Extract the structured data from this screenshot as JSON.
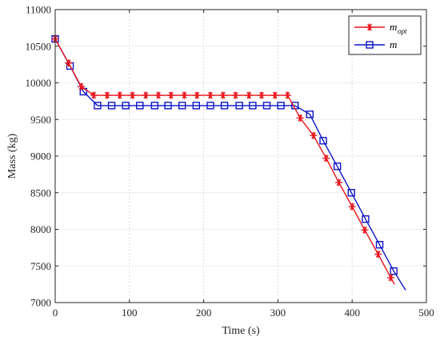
{
  "chart_data": {
    "type": "line",
    "xlabel": "Time (s)",
    "ylabel": "Mass (kg)",
    "xlim": [
      0,
      500
    ],
    "ylim": [
      7000,
      11000
    ],
    "xticks": [
      "0",
      "100",
      "200",
      "300",
      "400",
      "500"
    ],
    "yticks": [
      "7000",
      "7500",
      "8000",
      "8500",
      "9000",
      "9500",
      "10000",
      "10500",
      "11000"
    ],
    "grid": true,
    "legend_position": "top-right",
    "colors": {
      "m_opt": "#e8141b",
      "m": "#0d14c8"
    },
    "series": [
      {
        "name": "m_opt",
        "label_main": "m",
        "label_sub": "opt",
        "marker": "asterisk",
        "x": [
          0,
          18,
          35,
          52,
          70,
          87,
          104,
          122,
          139,
          156,
          174,
          191,
          209,
          226,
          243,
          261,
          278,
          296,
          313,
          330,
          348,
          365,
          382,
          400,
          417,
          435,
          452
        ],
        "y": [
          10600,
          10270,
          9950,
          9830,
          9830,
          9830,
          9830,
          9830,
          9830,
          9830,
          9830,
          9830,
          9830,
          9830,
          9830,
          9830,
          9830,
          9830,
          9830,
          9520,
          9280,
          8970,
          8640,
          8310,
          7990,
          7660,
          7340
        ]
      },
      {
        "name": "m",
        "label_main": "m",
        "label_sub": "",
        "marker": "square",
        "x": [
          0,
          20,
          38,
          57,
          76,
          95,
          114,
          134,
          152,
          171,
          190,
          209,
          228,
          248,
          266,
          285,
          304,
          323,
          343,
          361,
          380,
          399,
          418,
          437,
          456
        ],
        "y": [
          10600,
          10230,
          9880,
          9690,
          9690,
          9690,
          9690,
          9690,
          9690,
          9690,
          9690,
          9690,
          9690,
          9690,
          9690,
          9690,
          9690,
          9690,
          9570,
          9210,
          8860,
          8500,
          8140,
          7790,
          7430
        ]
      }
    ]
  }
}
